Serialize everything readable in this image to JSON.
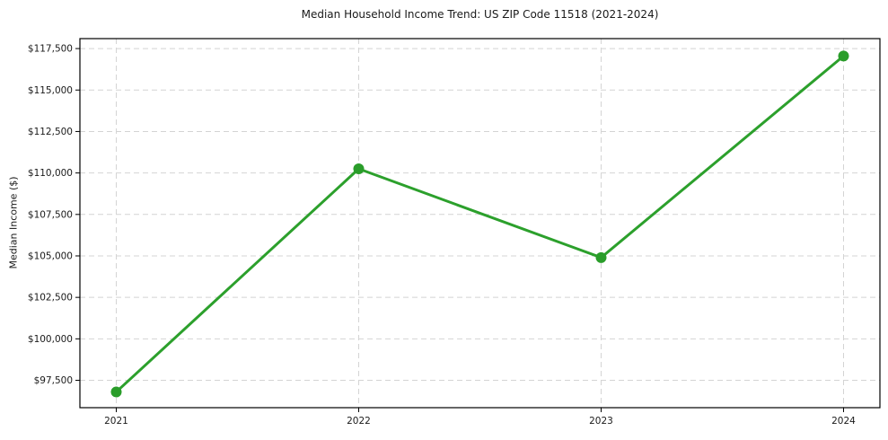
{
  "figure": {
    "background_color": "#ffffff",
    "text_color": "#1a1a1a",
    "axis_color": "#000000"
  },
  "chart_data": {
    "type": "line",
    "title": "Median Household Income Trend: US ZIP Code 11518 (2021-2024)",
    "xlabel": "",
    "ylabel": "Median Income ($)",
    "x": [
      2021,
      2022,
      2023,
      2024
    ],
    "series": [
      {
        "name": "Median Household Income",
        "values": [
          96800,
          110250,
          104900,
          117050
        ]
      }
    ],
    "xtick_labels": [
      "2021",
      "2022",
      "2023",
      "2024"
    ],
    "ytick_values": [
      97500,
      100000,
      102500,
      105000,
      107500,
      110000,
      112500,
      115000,
      117500
    ],
    "ytick_labels": [
      "$97,500",
      "$100,000",
      "$102,500",
      "$105,000",
      "$107,500",
      "$110,000",
      "$112,500",
      "$115,000",
      "$117,500"
    ],
    "xlim": [
      2020.85,
      2024.15
    ],
    "ylim": [
      95850,
      118100
    ],
    "grid": true,
    "grid_style": "dashed",
    "legend": null,
    "line_color": "#2ca02c",
    "marker_color": "#2a9d2a",
    "grid_color": "#d4d4d4",
    "line_width": 3,
    "marker_size": 6
  }
}
